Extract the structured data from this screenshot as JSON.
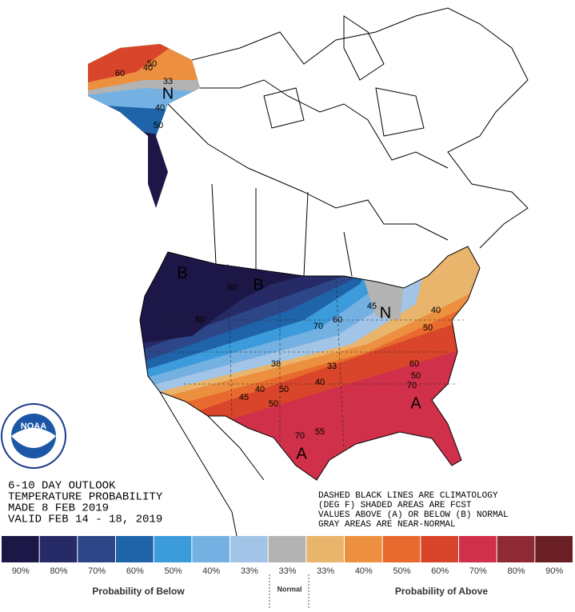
{
  "outlook_text": [
    "6-10 DAY OUTLOOK",
    "TEMPERATURE PROBABILITY",
    "MADE  8 FEB 2019",
    "VALID  FEB 14 - 18, 2019"
  ],
  "notes": [
    "DASHED BLACK LINES ARE CLIMATOLOGY",
    "(DEG F) SHADED AREAS ARE FCST",
    "VALUES ABOVE (A) OR BELOW (B) NORMAL",
    "GRAY AREAS ARE NEAR-NORMAL"
  ],
  "logo": "NOAA",
  "map_labels": [
    "60",
    "40",
    "50",
    "33",
    "N",
    "40",
    "50",
    "B",
    "90",
    "B",
    "80",
    "70",
    "60",
    "N",
    "45",
    "40",
    "50",
    "38",
    "33",
    "40",
    "50",
    "45",
    "40",
    "50",
    "60",
    "50",
    "70",
    "A",
    "70",
    "55",
    "A"
  ],
  "legend": {
    "bins": [
      {
        "label": "90%",
        "color": "#1c1747"
      },
      {
        "label": "80%",
        "color": "#262a66"
      },
      {
        "label": "70%",
        "color": "#2c4688"
      },
      {
        "label": "60%",
        "color": "#1f63a8"
      },
      {
        "label": "50%",
        "color": "#3c9bda"
      },
      {
        "label": "40%",
        "color": "#74b1e2"
      },
      {
        "label": "33%",
        "color": "#a2c4e6"
      },
      {
        "label": "33%",
        "color": "#b3b3b3"
      },
      {
        "label": "33%",
        "color": "#e9b46b"
      },
      {
        "label": "40%",
        "color": "#ec903f"
      },
      {
        "label": "50%",
        "color": "#e86a2e"
      },
      {
        "label": "60%",
        "color": "#d8452b"
      },
      {
        "label": "70%",
        "color": "#d0304a"
      },
      {
        "label": "80%",
        "color": "#8f2a35"
      },
      {
        "label": "90%",
        "color": "#6a1f25"
      }
    ],
    "below_title": "Probability of Below",
    "normal_title": "Normal",
    "above_title": "Probability of Above"
  }
}
